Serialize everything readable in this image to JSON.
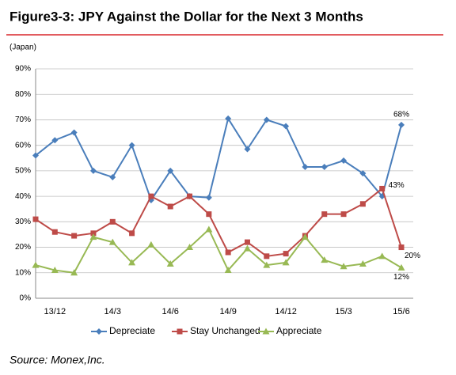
{
  "chart_data": {
    "type": "line",
    "title": "Figure3-3: JPY Against the Dollar for the Next 3 Months",
    "subtitle": "(Japan)",
    "source": "Source: Monex,Inc.",
    "categories": [
      null,
      "13/12",
      null,
      null,
      "14/3",
      null,
      null,
      "14/6",
      null,
      null,
      "14/9",
      null,
      null,
      "14/12",
      null,
      null,
      "15/3",
      null,
      null,
      "15/6"
    ],
    "series": [
      {
        "name": "Depreciate",
        "color": "#4a7ebb",
        "marker": "diamond",
        "values": [
          56,
          62,
          65,
          50,
          47.5,
          60,
          38.5,
          50,
          40,
          39.5,
          70.5,
          58.5,
          70,
          67.5,
          51.5,
          51.5,
          54,
          49,
          40,
          68
        ],
        "value_labels": [
          null,
          null,
          null,
          null,
          null,
          null,
          null,
          null,
          null,
          null,
          null,
          null,
          null,
          null,
          null,
          null,
          null,
          null,
          null,
          "68%"
        ]
      },
      {
        "name": "Stay Unchanged",
        "color": "#be4b48",
        "marker": "square",
        "values": [
          31,
          26,
          24.5,
          25.5,
          30,
          25.5,
          40,
          36,
          40,
          33,
          18,
          22,
          16.5,
          17.5,
          24.5,
          33,
          33,
          37,
          43,
          20
        ],
        "value_labels": [
          null,
          null,
          null,
          null,
          null,
          null,
          null,
          null,
          null,
          null,
          null,
          null,
          null,
          null,
          null,
          null,
          null,
          null,
          "43%",
          "20%"
        ]
      },
      {
        "name": "Appreciate",
        "color": "#98b954",
        "marker": "triangle",
        "values": [
          13,
          11,
          10,
          24,
          22,
          14,
          21,
          13.5,
          20,
          27,
          11,
          19.5,
          13,
          14,
          24,
          15,
          12.5,
          13.5,
          16.5,
          12
        ],
        "value_labels": [
          null,
          null,
          null,
          null,
          null,
          null,
          null,
          null,
          null,
          null,
          null,
          null,
          null,
          null,
          null,
          null,
          null,
          null,
          null,
          "12%"
        ]
      }
    ],
    "ylim": [
      0,
      90
    ],
    "yticks": [
      {
        "value": 0,
        "label": "0%"
      },
      {
        "value": 10,
        "label": "10%"
      },
      {
        "value": 20,
        "label": "20%"
      },
      {
        "value": 30,
        "label": "30%"
      },
      {
        "value": 40,
        "label": "40%"
      },
      {
        "value": 50,
        "label": "50%"
      },
      {
        "value": 60,
        "label": "60%"
      },
      {
        "value": 70,
        "label": "70%"
      },
      {
        "value": 80,
        "label": "80%"
      },
      {
        "value": 90,
        "label": "90%"
      }
    ],
    "grid": true,
    "legend": "bottom"
  }
}
